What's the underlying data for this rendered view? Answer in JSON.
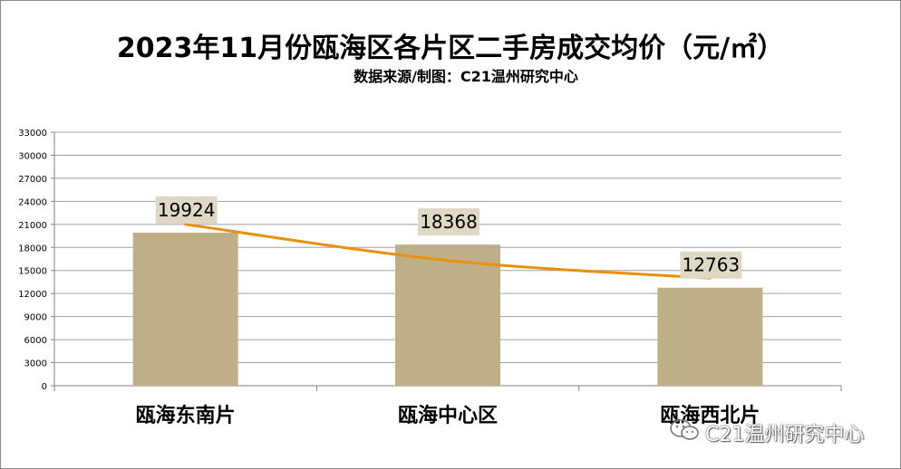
{
  "title": "2023年11月份瓯海区各片区二手房成交均价（元/㎡）",
  "subtitle": "数据来源/制图：C21温州研究中心",
  "watermark": {
    "icon": "wechat-icon",
    "text": "C21温州研究中心"
  },
  "colors": {
    "bar": "#BEAF86",
    "trend": "#E8900C",
    "label_box": "#DDD9C4",
    "grid": "#A0A0A0"
  },
  "chart_data": {
    "type": "bar",
    "title": "2023年11月份瓯海区各片区二手房成交均价（元/㎡）",
    "xlabel": "",
    "ylabel": "",
    "categories": [
      "瓯海东南片",
      "瓯海中心区",
      "瓯海西北片"
    ],
    "values": [
      19924,
      18368,
      12763
    ],
    "ylim": [
      0,
      33000
    ],
    "yticks": [
      0,
      3000,
      6000,
      9000,
      12000,
      15000,
      18000,
      21000,
      24000,
      27000,
      30000,
      33000
    ],
    "grid": true,
    "legend": "none",
    "trendline": {
      "type": "smoothed line",
      "values": [
        21000,
        16300,
        14000
      ]
    }
  }
}
